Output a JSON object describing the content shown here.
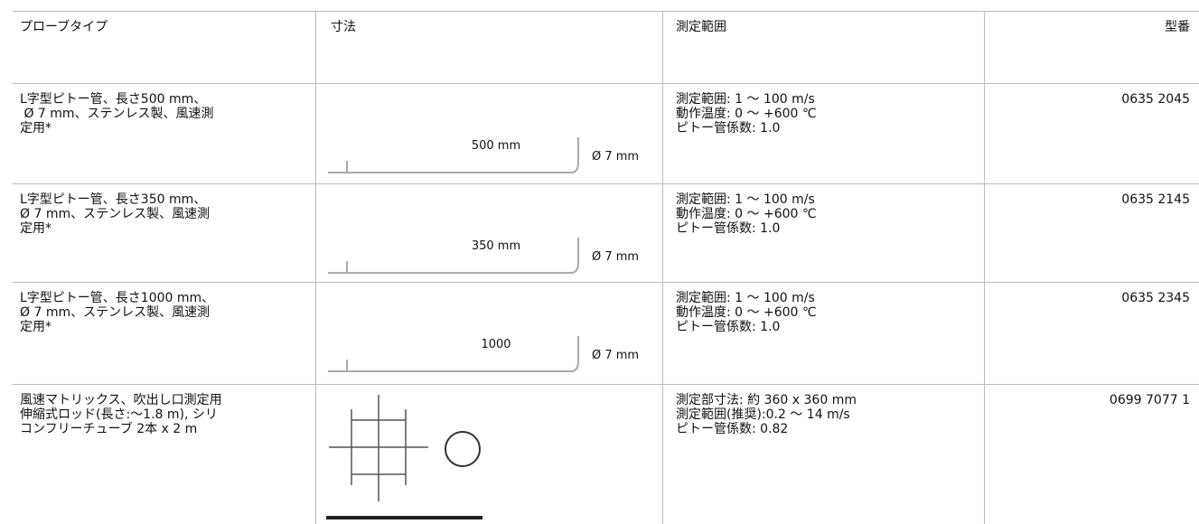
{
  "table": {
    "headers": [
      "プローブタイプ",
      "寸法",
      "測定範囲",
      "型番"
    ],
    "rows": [
      {
        "type": [
          "L字型ピトー管、長さ500 mm、",
          " Ø 7 mm、ステンレス製、風速測",
          "定用*"
        ],
        "dimension": {
          "length": "500 mm",
          "diameter": "Ø 7 mm"
        },
        "range": [
          "測定範囲: 1 ～ 100 m/s",
          "動作温度: 0 ～ +600 ℃",
          "ピトー管係数: 1.0"
        ],
        "model": "0635 2045"
      },
      {
        "type": [
          "L字型ピトー管、長さ350 mm、",
          "Ø 7 mm、ステンレス製、風速測",
          "定用*"
        ],
        "dimension": {
          "length": "350 mm",
          "diameter": "Ø 7 mm"
        },
        "range": [
          "測定範囲: 1 ～ 100 m/s",
          "動作温度: 0 ～ +600 ℃",
          "ピトー管係数: 1.0"
        ],
        "model": "0635 2145"
      },
      {
        "type": [
          "L字型ピトー管、長さ1000 mm、",
          "Ø 7 mm、ステンレス製、風速測",
          "定用*"
        ],
        "dimension": {
          "length": "1000",
          "diameter": "Ø 7 mm"
        },
        "range": [
          "測定範囲: 1 ～ 100 m/s",
          "動作温度: 0 ～ +600 ℃",
          "ピトー管係数: 1.0"
        ],
        "model": "0635 2345"
      },
      {
        "type": [
          "風速マトリックス、吹出し口測定用",
          "伸縮式ロッド(長さ:～1.8 m), シリ",
          "コンフリーチューブ 2本 x 2 m"
        ],
        "range": [
          "測定部寸法: 約 360 x 360 mm",
          "測定範囲(推奨):0.2 ～ 14 m/s",
          "ピトー管係数: 0.82"
        ],
        "model": "0699 7077 1"
      }
    ]
  }
}
